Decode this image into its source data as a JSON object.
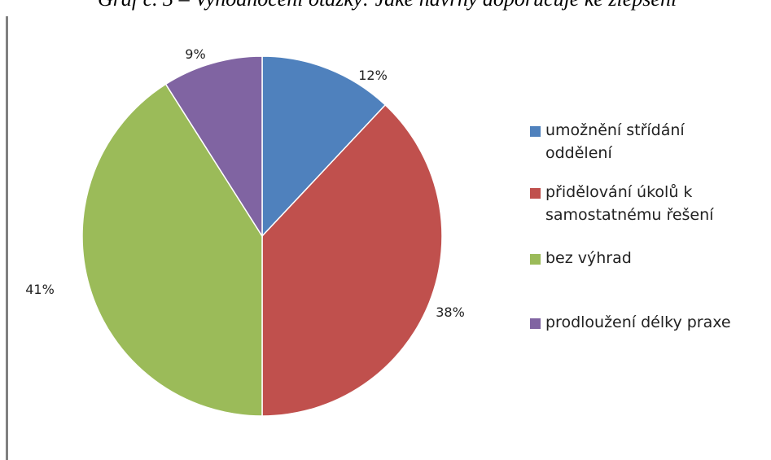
{
  "figure": {
    "caption": "Graf č. 3 – Vyhodnocení otázky: Jaké návrhy doporučuje ke zlepšení"
  },
  "chart_data": {
    "type": "pie",
    "title": "",
    "start_angle_deg": 0,
    "direction": "clockwise",
    "legend_position": "right",
    "series": [
      {
        "values": [
          12,
          38,
          41,
          9
        ],
        "labels": [
          "12%",
          "38%",
          "41%",
          "9%"
        ]
      }
    ],
    "categories": [
      {
        "name": "umožnění střídání oddělení",
        "lines": [
          "umožnění střídání",
          "oddělení"
        ],
        "value": 12,
        "label": "12%",
        "color": "#4F81BD"
      },
      {
        "name": "přidělování úkolů k samostatnému řešení",
        "lines": [
          "přidělování úkolů k",
          "samostatnému řešení"
        ],
        "value": 38,
        "label": "38%",
        "color": "#C0504D"
      },
      {
        "name": "bez výhrad",
        "lines": [
          "bez výhrad"
        ],
        "value": 41,
        "label": "41%",
        "color": "#9BBB59"
      },
      {
        "name": "prodloužení délky praxe",
        "lines": [
          "prodloužení délky praxe"
        ],
        "value": 9,
        "label": "9%",
        "color": "#8064A2"
      }
    ]
  }
}
